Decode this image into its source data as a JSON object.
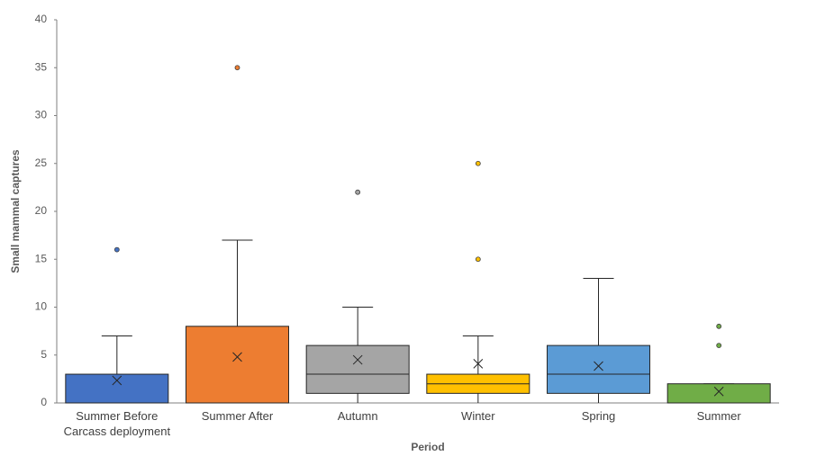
{
  "chart_data": {
    "type": "box",
    "y_label": "Small mammal captures",
    "x_label": "Period",
    "categories": [
      "Summer Before\nCarcass deployment",
      "Summer After",
      "Autumn",
      "Winter",
      "Spring",
      "Summer"
    ],
    "boxes": [
      {
        "min": 0,
        "q1": 0,
        "median": 0,
        "q3": 3,
        "max": 7,
        "mean": 2.35,
        "outliers": [
          16
        ],
        "color": "#4472c4"
      },
      {
        "min": 0,
        "q1": 0,
        "median": 0,
        "q3": 8,
        "max": 17,
        "mean": 4.8,
        "outliers": [
          35
        ],
        "color": "#ed7d31"
      },
      {
        "min": 0,
        "q1": 1,
        "median": 3,
        "q3": 6,
        "max": 10,
        "mean": 4.5,
        "outliers": [
          22
        ],
        "color": "#a5a5a5"
      },
      {
        "min": 0,
        "q1": 1,
        "median": 2,
        "q3": 3,
        "max": 7,
        "mean": 4.1,
        "outliers": [
          15,
          25
        ],
        "color": "#ffc000"
      },
      {
        "min": 0,
        "q1": 1,
        "median": 3,
        "q3": 6,
        "max": 13,
        "mean": 3.85,
        "outliers": [],
        "color": "#5b9bd5"
      },
      {
        "min": 0,
        "q1": 0,
        "median": 0,
        "q3": 2,
        "max": 2,
        "mean": 1.2,
        "outliers": [
          6,
          8
        ],
        "color": "#70ad47"
      }
    ],
    "ylim": [
      0,
      40
    ],
    "yticks": [
      0,
      5,
      10,
      15,
      20,
      25,
      30,
      35,
      40
    ]
  }
}
